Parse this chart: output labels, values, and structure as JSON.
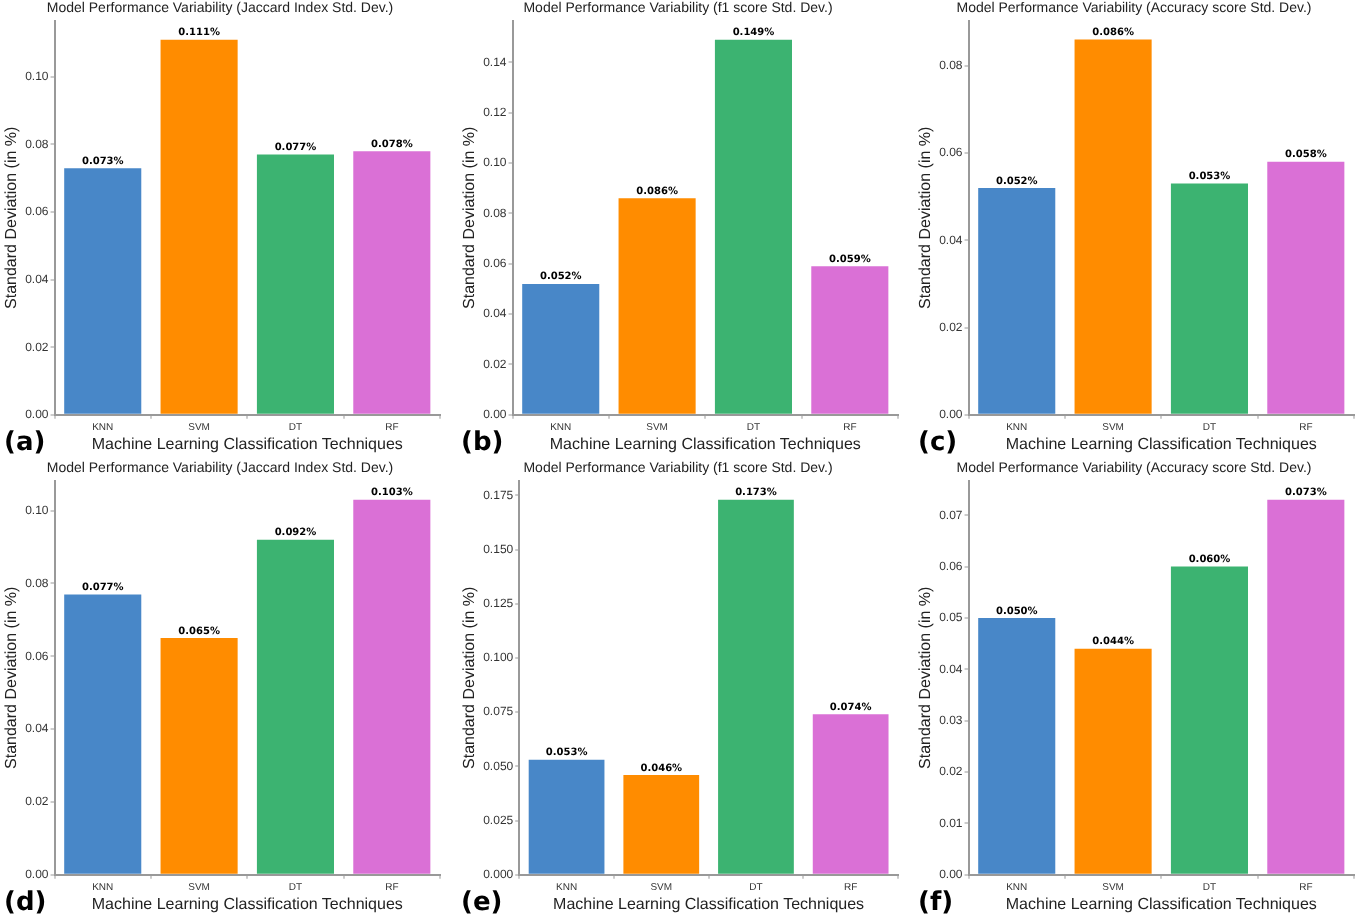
{
  "chart_data": [
    {
      "type": "bar",
      "title": "Model Performance Variability (Jaccard Index Std. Dev.)",
      "xlabel": "Machine Learning Classification Techniques",
      "ylabel": "Standard Deviation (in %)",
      "annotations": [
        "(a)"
      ],
      "categories": [
        "KNN",
        "SVM",
        "DT",
        "RF"
      ],
      "values": [
        0.073,
        0.111,
        0.077,
        0.078
      ],
      "value_labels": [
        "0.073%",
        "0.111%",
        "0.077%",
        "0.078%"
      ],
      "colors": [
        "#4887c8",
        "#ff8c00",
        "#3cb371",
        "#da70d6"
      ],
      "ylim": [
        0,
        0.1166
      ],
      "yticks": [
        {
          "value": 0,
          "label": "0.00"
        },
        {
          "value": 0.02,
          "label": "0.02"
        },
        {
          "value": 0.04,
          "label": "0.04"
        },
        {
          "value": 0.06,
          "label": "0.06"
        },
        {
          "value": 0.08,
          "label": "0.08"
        },
        {
          "value": 0.1,
          "label": "0.10"
        }
      ],
      "grid": false,
      "legend": false
    },
    {
      "type": "bar",
      "title": "Model Performance Variability (f1 score Std. Dev.)",
      "xlabel": "Machine Learning Classification Techniques",
      "ylabel": "Standard Deviation (in %)",
      "annotations": [
        "(b)"
      ],
      "categories": [
        "KNN",
        "SVM",
        "DT",
        "RF"
      ],
      "values": [
        0.052,
        0.086,
        0.149,
        0.059
      ],
      "value_labels": [
        "0.052%",
        "0.086%",
        "0.149%",
        "0.059%"
      ],
      "colors": [
        "#4887c8",
        "#ff8c00",
        "#3cb371",
        "#da70d6"
      ],
      "ylim": [
        0,
        0.1565
      ],
      "yticks": [
        {
          "value": 0,
          "label": "0.00"
        },
        {
          "value": 0.02,
          "label": "0.02"
        },
        {
          "value": 0.04,
          "label": "0.04"
        },
        {
          "value": 0.06,
          "label": "0.06"
        },
        {
          "value": 0.08,
          "label": "0.08"
        },
        {
          "value": 0.1,
          "label": "0.10"
        },
        {
          "value": 0.12,
          "label": "0.12"
        },
        {
          "value": 0.14,
          "label": "0.14"
        }
      ],
      "grid": false,
      "legend": false
    },
    {
      "type": "bar",
      "title": "Model Performance Variability (Accuracy score Std. Dev.)",
      "xlabel": "Machine Learning Classification Techniques",
      "ylabel": "Standard Deviation (in %)",
      "annotations": [
        "(c)"
      ],
      "categories": [
        "KNN",
        "SVM",
        "DT",
        "RF"
      ],
      "values": [
        0.052,
        0.086,
        0.053,
        0.058
      ],
      "value_labels": [
        "0.052%",
        "0.086%",
        "0.053%",
        "0.058%"
      ],
      "colors": [
        "#4887c8",
        "#ff8c00",
        "#3cb371",
        "#da70d6"
      ],
      "ylim": [
        0,
        0.0903
      ],
      "yticks": [
        {
          "value": 0,
          "label": "0.00"
        },
        {
          "value": 0.02,
          "label": "0.02"
        },
        {
          "value": 0.04,
          "label": "0.04"
        },
        {
          "value": 0.06,
          "label": "0.06"
        },
        {
          "value": 0.08,
          "label": "0.08"
        }
      ],
      "grid": false,
      "legend": false
    },
    {
      "type": "bar",
      "title": "Model Performance Variability (Jaccard Index Std. Dev.)",
      "xlabel": "Machine Learning Classification Techniques",
      "ylabel": "Standard Deviation (in %)",
      "annotations": [
        "(d)"
      ],
      "categories": [
        "KNN",
        "SVM",
        "DT",
        "RF"
      ],
      "values": [
        0.077,
        0.065,
        0.092,
        0.103
      ],
      "value_labels": [
        "0.077%",
        "0.065%",
        "0.092%",
        "0.103%"
      ],
      "colors": [
        "#4887c8",
        "#ff8c00",
        "#3cb371",
        "#da70d6"
      ],
      "ylim": [
        0,
        0.1082
      ],
      "yticks": [
        {
          "value": 0,
          "label": "0.00"
        },
        {
          "value": 0.02,
          "label": "0.02"
        },
        {
          "value": 0.04,
          "label": "0.04"
        },
        {
          "value": 0.06,
          "label": "0.06"
        },
        {
          "value": 0.08,
          "label": "0.08"
        },
        {
          "value": 0.1,
          "label": "0.10"
        }
      ],
      "grid": false,
      "legend": false
    },
    {
      "type": "bar",
      "title": "Model Performance Variability (f1 score Std. Dev.)",
      "xlabel": "Machine Learning Classification Techniques",
      "ylabel": "Standard Deviation (in %)",
      "annotations": [
        "(e)"
      ],
      "categories": [
        "KNN",
        "SVM",
        "DT",
        "RF"
      ],
      "values": [
        0.053,
        0.046,
        0.173,
        0.074
      ],
      "value_labels": [
        "0.053%",
        "0.046%",
        "0.173%",
        "0.074%"
      ],
      "colors": [
        "#4887c8",
        "#ff8c00",
        "#3cb371",
        "#da70d6"
      ],
      "ylim": [
        0,
        0.1817
      ],
      "yticks": [
        {
          "value": 0,
          "label": "0.000"
        },
        {
          "value": 0.025,
          "label": "0.025"
        },
        {
          "value": 0.05,
          "label": "0.050"
        },
        {
          "value": 0.075,
          "label": "0.075"
        },
        {
          "value": 0.1,
          "label": "0.100"
        },
        {
          "value": 0.125,
          "label": "0.125"
        },
        {
          "value": 0.15,
          "label": "0.150"
        },
        {
          "value": 0.175,
          "label": "0.175"
        }
      ],
      "grid": false,
      "legend": false
    },
    {
      "type": "bar",
      "title": "Model Performance Variability (Accuracy score Std. Dev.)",
      "xlabel": "Machine Learning Classification Techniques",
      "ylabel": "Standard Deviation (in %)",
      "annotations": [
        "(f)"
      ],
      "categories": [
        "KNN",
        "SVM",
        "DT",
        "RF"
      ],
      "values": [
        0.05,
        0.044,
        0.06,
        0.073
      ],
      "value_labels": [
        "0.050%",
        "0.044%",
        "0.060%",
        "0.073%"
      ],
      "colors": [
        "#4887c8",
        "#ff8c00",
        "#3cb371",
        "#da70d6"
      ],
      "ylim": [
        0,
        0.0767
      ],
      "yticks": [
        {
          "value": 0,
          "label": "0.00"
        },
        {
          "value": 0.01,
          "label": "0.01"
        },
        {
          "value": 0.02,
          "label": "0.02"
        },
        {
          "value": 0.03,
          "label": "0.03"
        },
        {
          "value": 0.04,
          "label": "0.04"
        },
        {
          "value": 0.05,
          "label": "0.05"
        },
        {
          "value": 0.06,
          "label": "0.06"
        },
        {
          "value": 0.07,
          "label": "0.07"
        }
      ],
      "grid": false,
      "legend": false
    }
  ]
}
